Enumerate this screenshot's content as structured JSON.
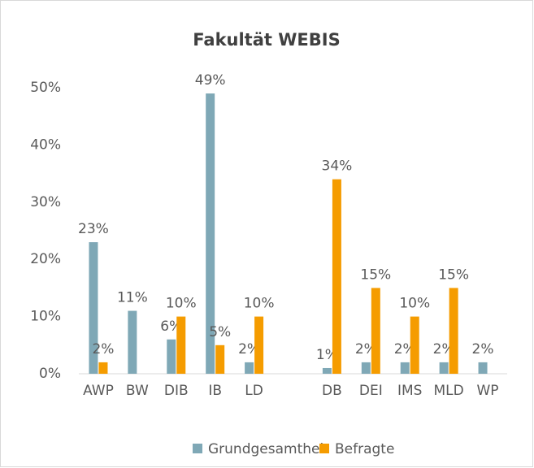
{
  "chart_data": {
    "type": "bar",
    "title": "Fakultät WEBIS",
    "categories": [
      "AWP",
      "BW",
      "DIB",
      "IB",
      "LD",
      null,
      "DB",
      "DEI",
      "IMS",
      "MLD",
      "WP"
    ],
    "series": [
      {
        "name": "Grundgesamtheit",
        "color": "#7fa8b6",
        "values": [
          23,
          11,
          6,
          49,
          2,
          null,
          1,
          2,
          2,
          2,
          2
        ],
        "value_labels": [
          "23%",
          "11%",
          "6%",
          "49%",
          "2%",
          null,
          "1%",
          "2%",
          "2%",
          "2%",
          "2%"
        ]
      },
      {
        "name": "Befragte",
        "color": "#f59c00",
        "values": [
          2,
          null,
          10,
          5,
          10,
          null,
          34,
          15,
          10,
          15,
          null
        ],
        "value_labels": [
          "2%",
          null,
          "10%",
          "5%",
          "10%",
          null,
          "34%",
          "15%",
          "10%",
          "15%",
          null
        ]
      }
    ],
    "ylim": [
      0,
      50
    ],
    "yticks": [
      {
        "value": 0,
        "label": "0%"
      },
      {
        "value": 10,
        "label": "10%"
      },
      {
        "value": 20,
        "label": "20%"
      },
      {
        "value": 30,
        "label": "30%"
      },
      {
        "value": 40,
        "label": "40%"
      },
      {
        "value": 50,
        "label": "50%"
      }
    ],
    "legend": "bottom"
  }
}
